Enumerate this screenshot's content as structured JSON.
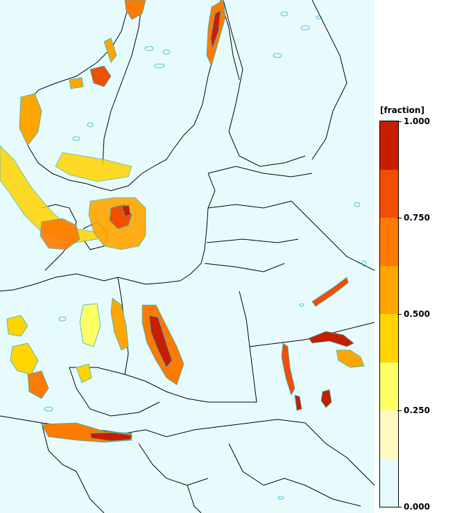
{
  "map": {
    "background_color": "#e8fbfc",
    "contour_color": "#2bb7c7",
    "border_color": "#000000"
  },
  "legend": {
    "unit_label": "[fraction]",
    "tick_labels": [
      "1.000",
      "0.750",
      "0.500",
      "0.250",
      "0.000"
    ],
    "tick_values": [
      1.0,
      0.75,
      0.5,
      0.25,
      0.0
    ],
    "color_bins": [
      {
        "from": 0.0,
        "to": 0.125,
        "color": "#e8fbfc"
      },
      {
        "from": 0.125,
        "to": 0.25,
        "color": "#fff8c0"
      },
      {
        "from": 0.25,
        "to": 0.375,
        "color": "#ffff66"
      },
      {
        "from": 0.375,
        "to": 0.5,
        "color": "#ffd400"
      },
      {
        "from": 0.5,
        "to": 0.625,
        "color": "#ffa500"
      },
      {
        "from": 0.625,
        "to": 0.75,
        "color": "#ff7a00"
      },
      {
        "from": 0.75,
        "to": 0.875,
        "color": "#f24e00"
      },
      {
        "from": 0.875,
        "to": 1.0,
        "color": "#c81e00"
      }
    ]
  }
}
